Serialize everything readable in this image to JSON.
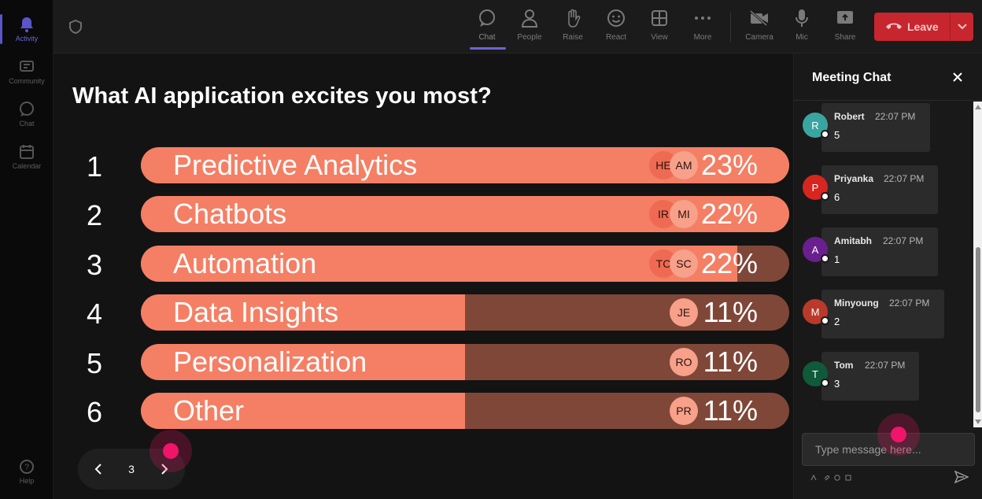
{
  "rail": {
    "items": [
      {
        "label": "Activity",
        "icon": "bell-icon"
      },
      {
        "label": "Community",
        "icon": "community-icon"
      },
      {
        "label": "Chat",
        "icon": "chat-icon"
      },
      {
        "label": "Calendar",
        "icon": "calendar-icon"
      }
    ],
    "help": "Help"
  },
  "toolbar": {
    "buttons": [
      {
        "label": "Chat",
        "icon": "chat-icon"
      },
      {
        "label": "People",
        "icon": "people-icon"
      },
      {
        "label": "Raise",
        "icon": "hand-icon"
      },
      {
        "label": "React",
        "icon": "smiley-icon"
      },
      {
        "label": "View",
        "icon": "grid-icon"
      },
      {
        "label": "More",
        "icon": "more-icon"
      },
      {
        "label": "Camera",
        "icon": "camera-off-icon"
      },
      {
        "label": "Mic",
        "icon": "mic-icon"
      },
      {
        "label": "Share",
        "icon": "share-icon"
      }
    ],
    "leave_label": "Leave"
  },
  "poll": {
    "question": "What AI application excites you most?",
    "options": [
      {
        "num": "1",
        "label": "Predictive Analytics",
        "pct": "23%",
        "fill": 1.0,
        "avatars": [
          "HE",
          "AM"
        ]
      },
      {
        "num": "2",
        "label": "Chatbots",
        "pct": "22%",
        "fill": 1.0,
        "avatars": [
          "IR",
          "MI"
        ]
      },
      {
        "num": "3",
        "label": "Automation",
        "pct": "22%",
        "fill": 0.92,
        "avatars": [
          "TC",
          "SC"
        ]
      },
      {
        "num": "4",
        "label": "Data Insights",
        "pct": "11%",
        "fill": 0.5,
        "avatars": [
          "JE"
        ]
      },
      {
        "num": "5",
        "label": "Personalization",
        "pct": "11%",
        "fill": 0.5,
        "avatars": [
          "RO"
        ]
      },
      {
        "num": "6",
        "label": "Other",
        "pct": "11%",
        "fill": 0.5,
        "avatars": [
          "PR"
        ]
      }
    ],
    "page": "3"
  },
  "chat": {
    "title": "Meeting Chat",
    "messages": [
      {
        "initial": "R",
        "name": "Robert",
        "time": "22:07 PM",
        "text": "5",
        "color": "#3aa5a0"
      },
      {
        "initial": "P",
        "name": "Priyanka",
        "time": "22:07 PM",
        "text": "6",
        "color": "#d7261f"
      },
      {
        "initial": "A",
        "name": "Amitabh",
        "time": "22:07 PM",
        "text": "1",
        "color": "#6a1f8f"
      },
      {
        "initial": "M",
        "name": "Minyoung",
        "time": "22:07 PM",
        "text": "2",
        "color": "#b93a2a"
      },
      {
        "initial": "T",
        "name": "Tom",
        "time": "22:07 PM",
        "text": "3",
        "color": "#0f5a3a"
      }
    ],
    "placeholder": "Type message here..."
  },
  "colors": {
    "accent": "#6a64d8",
    "leave": "#c7262e",
    "bar_fill": "#f47f64",
    "bar_track": "#7f4738",
    "click_marker": "#f0146a"
  }
}
